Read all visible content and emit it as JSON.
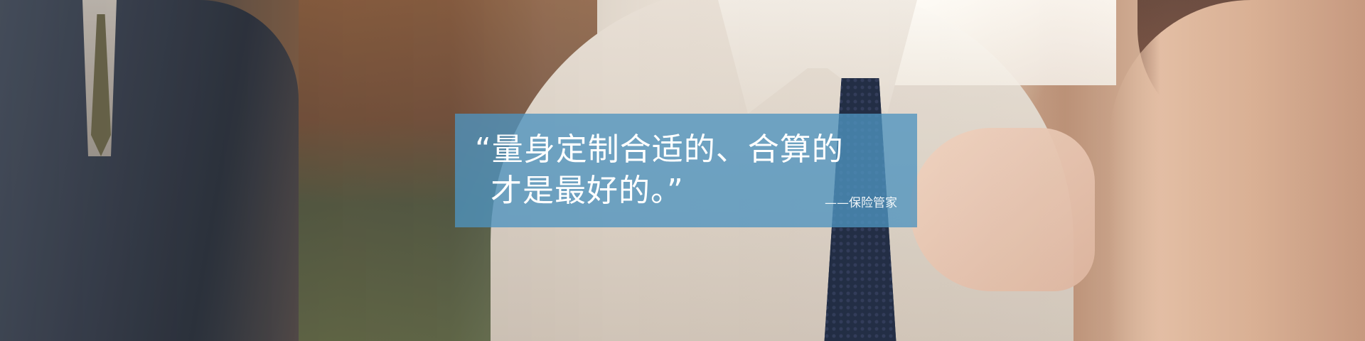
{
  "hero": {
    "quote_line_1": "“量身定制合适的、合算的",
    "quote_line_2": "才是最好的。”",
    "attribution": "——保险管家",
    "box_color": "#4e94bf"
  }
}
